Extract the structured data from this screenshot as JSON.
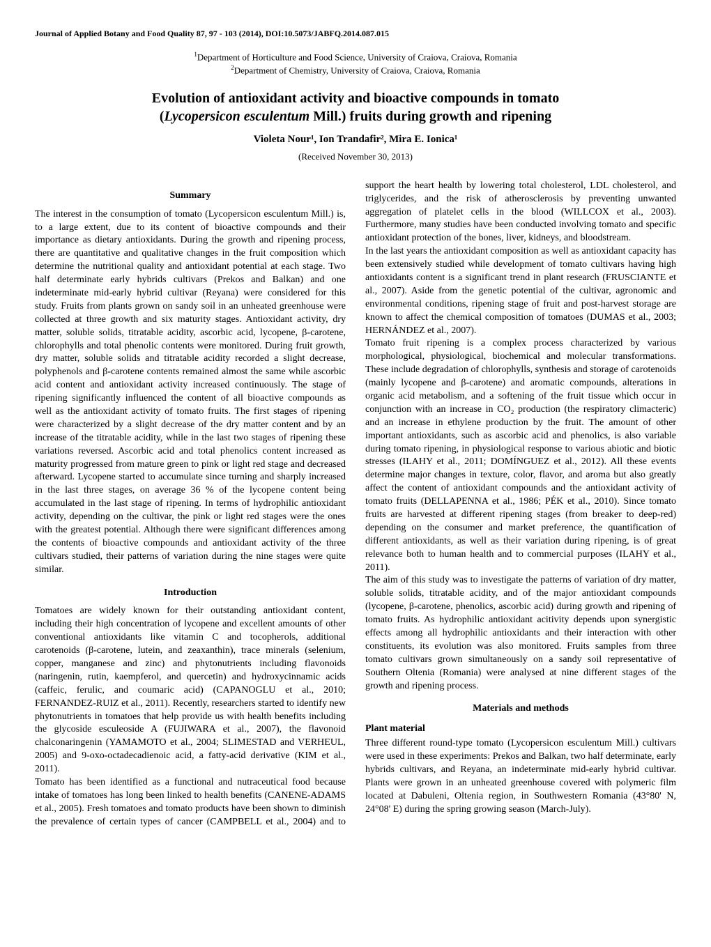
{
  "journal": {
    "citation": "Journal of Applied Botany and Food Quality 87, 97 - 103 (2014), DOI:10.5073/JABFQ.2014.087.015"
  },
  "affiliations": {
    "line1_prefix": "1",
    "line1": "Department of Horticulture and Food Science, University of Craiova, Craiova, Romania",
    "line2_prefix": "2",
    "line2": "Department of Chemistry, University of Craiova, Craiova, Romania"
  },
  "title": {
    "line1": "Evolution of antioxidant activity and bioactive compounds in tomato",
    "line2_prefix": "(",
    "line2_italic": "Lycopersicon esculentum",
    "line2_suffix": " Mill.) fruits during growth and ripening"
  },
  "authors": "Violeta Nour¹, Ion Trandafir², Mira E. Ionica¹",
  "received": "(Received November 30, 2013)",
  "sections": {
    "summary": {
      "heading": "Summary",
      "body": "The interest in the consumption of tomato (Lycopersicon esculentum Mill.) is, to a large extent, due to its content of bioactive compounds and their importance as dietary antioxidants. During the growth and ripening process, there are quantitative and qualitative changes in the fruit composition which determine the nutritional quality and antioxidant potential at each stage. Two half determinate early hybrids cultivars (Prekos and Balkan) and one indeterminate mid-early hybrid cultivar (Reyana) were considered for this study. Fruits from plants grown on sandy soil in an unheated greenhouse were collected at three growth and six maturity stages. Antioxidant activity, dry matter, soluble solids, titratable acidity, ascorbic acid, lycopene, β-carotene, chlorophylls and total phenolic contents were monitored. During fruit growth, dry matter, soluble solids and titratable acidity recorded a slight decrease, polyphenols and β-carotene contents remained almost the same while ascorbic acid content and antioxidant activity increased continuously. The stage of ripening significantly influenced the content of all bioactive compounds as well as the antioxidant activity of tomato fruits. The first stages of ripening were characterized by a slight decrease of the dry matter content and by an increase of the titratable acidity, while in the last two stages of ripening these variations reversed. Ascorbic acid and total phenolics content increased as maturity progressed from mature green to pink or light red stage and decreased afterward. Lycopene started to accumulate since turning and sharply increased in the last three stages, on average 36 % of the lycopene content being accumulated in the last stage of ripening. In terms of hydrophilic antioxidant activity, depending on the cultivar, the pink or light red stages were the ones with the greatest potential. Although there were significant differences among the contents of bioactive compounds and antioxidant activity of the three cultivars studied, their patterns of variation during the nine stages were quite similar."
    },
    "introduction": {
      "heading": "Introduction",
      "p1": "Tomatoes are widely known for their outstanding antioxidant content, including their high concentration of lycopene and excellent amounts of other conventional antioxidants like vitamin C and tocopherols, additional carotenoids (β-carotene, lutein, and zeaxanthin), trace minerals (selenium, copper, manganese and zinc) and phytonutrients including flavonoids (naringenin, rutin, kaempferol, and quercetin) and hydroxycinnamic acids (caffeic, ferulic, and coumaric acid) (CAPANOGLU et al., 2010; FERNANDEZ-RUIZ et al., 2011). Recently, researchers started to identify new phytonutrients in tomatoes that help provide us with health benefits including the glycoside esculeoside A (FUJIWARA et al., 2007), the flavonoid chalconaringenin (YAMAMOTO et al., 2004; SLIMESTAD and VERHEUL, 2005) and 9-oxo-octadecadienoic acid, a fatty-acid derivative (KIM et al., 2011).",
      "p2": "Tomato has been identified as a functional and nutraceutical food because intake of tomatoes has long been linked to health benefits (CANENE-ADAMS et al., 2005). Fresh tomatoes and tomato products have been shown to diminish the prevalence of certain types of cancer (CAMPBELL et al., 2004) and to support the heart health by lowering total cholesterol, LDL cholesterol, and triglycerides, and the risk of atherosclerosis by preventing unwanted aggregation of platelet cells in the blood (WILLCOX et al., 2003). Furthermore, many studies have been conducted involving tomato and specific antioxidant protection of the bones, liver, kidneys, and bloodstream.",
      "p3": "In the last years the antioxidant composition as well as antioxidant capacity has been extensively studied while development of tomato cultivars having high antioxidants content is a significant trend in plant research (FRUSCIANTE et al., 2007). Aside from the genetic potential of the cultivar, agronomic and environmental conditions, ripening stage of fruit and post-harvest storage are known to affect the chemical composition of tomatoes (DUMAS et al., 2003; HERNÁNDEZ et al., 2007).",
      "p4": "Tomato fruit ripening is a complex process characterized by various morphological, physiological, biochemical and molecular transformations. These include degradation of chlorophylls, synthesis and storage of carotenoids (mainly lycopene and β-carotene) and aromatic compounds, alterations in organic acid metabolism, and a softening of the fruit tissue which occur in conjunction with an increase in CO₂ production (the respiratory climacteric) and an increase in ethylene production by the fruit. The amount of other important antioxidants, such as ascorbic acid and phenolics, is also variable during tomato ripening, in physiological response to various abiotic and biotic stresses (ILAHY et al., 2011; DOMÍNGUEZ et al., 2012). All these events determine major changes in texture, color, flavor, and aroma but also greatly affect the content of antioxidant compounds and the antioxidant activity of tomato fruits (DELLAPENNA et al., 1986; PÉK et al., 2010). Since tomato fruits are harvested at different ripening stages (from breaker to deep-red) depending on the consumer and market preference, the quantification of different antioxidants, as well as their variation during ripening, is of great relevance both to human health and to commercial purposes (ILAHY et al., 2011).",
      "p5": "The aim of this study was to investigate the patterns of variation of dry matter, soluble solids, titratable acidity, and of the major antioxidant compounds (lycopene, β-carotene, phenolics, ascorbic acid) during growth and ripening of tomato fruits. As hydrophilic antioxidant acitivity depends upon synergistic effects among all hydrophilic antioxidants and their interaction with other constituents, its evolution was also monitored. Fruits samples from three tomato cultivars grown simultaneously on a sandy soil representative of Southern Oltenia (Romania) were analysed at nine different stages of the growth and ripening process."
    },
    "materials": {
      "heading": "Materials and methods",
      "plant_heading": "Plant material",
      "plant_body": "Three different round-type tomato (Lycopersicon esculentum Mill.) cultivars were used in these experiments: Prekos and Balkan, two half determinate, early hybrids cultivars, and Reyana, an indeterminate mid-early hybrid cultivar. Plants were grown in an unheated greenhouse covered with polymeric film located at Dabuleni, Oltenia region, in Southwestern Romania (43°80' N, 24°08' E) during the spring growing season (March-July)."
    }
  }
}
